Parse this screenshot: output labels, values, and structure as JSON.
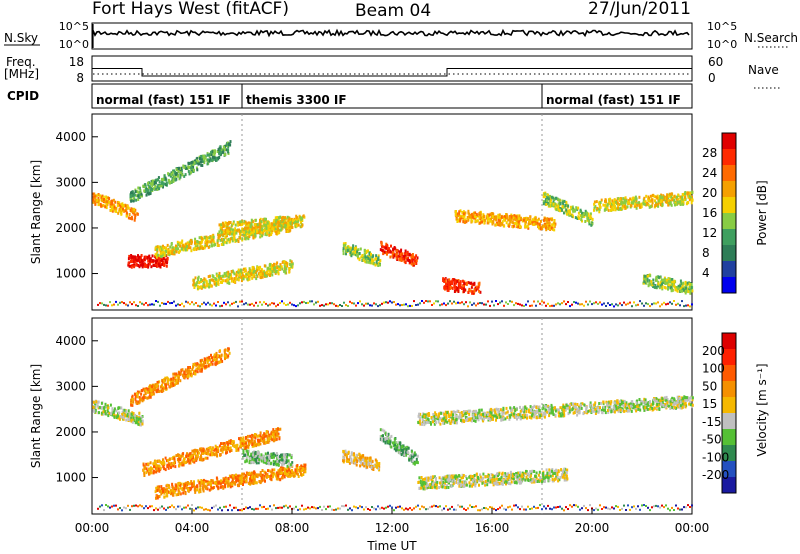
{
  "header": {
    "station": "Fort Hays West (fitACF)",
    "beam": "Beam 04",
    "date": "27/Jun/2011"
  },
  "noise_panel": {
    "left_label": "N.Sky",
    "right_label": "N.Search",
    "ticks": [
      "10^5",
      "10^0"
    ]
  },
  "freq_panel": {
    "left_label_line1": "Freq.",
    "left_label_line2": "[MHz]",
    "left_ticks": [
      "18",
      "8"
    ],
    "right_label": "Nave",
    "right_ticks": [
      "60",
      "0"
    ]
  },
  "cpid": {
    "label": "CPID",
    "segments": [
      {
        "label": "normal (fast) 151 IF",
        "start_hour": 0,
        "end_hour": 6
      },
      {
        "label": "themis 3300 IF",
        "start_hour": 6,
        "end_hour": 18
      },
      {
        "label": "normal (fast) 151 IF",
        "start_hour": 18,
        "end_hour": 24
      }
    ]
  },
  "time_axis": {
    "label": "Time UT",
    "ticks": [
      "00:00",
      "04:00",
      "08:00",
      "12:00",
      "16:00",
      "20:00",
      "00:00"
    ]
  },
  "power_panel": {
    "ylabel": "Slant Range [km]",
    "yticks": [
      "1000",
      "2000",
      "3000",
      "4000"
    ],
    "colorbar_label": "Power [dB]",
    "colorbar_ticks": [
      "28",
      "24",
      "20",
      "16",
      "12",
      "8",
      "4"
    ],
    "colors": [
      "#0000ee",
      "#2040a0",
      "#2e7d57",
      "#3f9f5f",
      "#88cc44",
      "#f5d000",
      "#f5a000",
      "#ff6a00",
      "#ff2a00",
      "#e00000"
    ]
  },
  "velocity_panel": {
    "ylabel": "Slant Range [km]",
    "yticks": [
      "1000",
      "2000",
      "3000",
      "4000"
    ],
    "colorbar_label": "Velocity [m s⁻¹]",
    "colorbar_ticks": [
      "200",
      "100",
      "50",
      "15",
      "-15",
      "-50",
      "-100",
      "-200"
    ],
    "colors": [
      "#1a1aa0",
      "#2450c0",
      "#2f8a4f",
      "#55c035",
      "#c0c0c0",
      "#f5b800",
      "#f59000",
      "#ff5a00",
      "#ff2000",
      "#dd0000"
    ]
  },
  "chart_data": {
    "type": "heatmap",
    "x_units": "hours UT",
    "xlim": [
      0,
      24
    ],
    "ylim": [
      200,
      4500
    ],
    "frequency_mhz": {
      "steps": [
        {
          "start_hour": 0,
          "end_hour": 2,
          "value": 13
        },
        {
          "start_hour": 2,
          "end_hour": 14.2,
          "value": 10
        },
        {
          "start_hour": 14.2,
          "end_hour": 24,
          "value": 13
        }
      ]
    },
    "power_bands": [
      {
        "start_hour": 0.0,
        "end_hour": 1.8,
        "start_range_km": 2700,
        "end_range_km": 2300,
        "level": 6
      },
      {
        "start_hour": 1.5,
        "end_hour": 5.5,
        "start_range_km": 2700,
        "end_range_km": 3800,
        "level": 3
      },
      {
        "start_hour": 1.4,
        "end_hour": 3.0,
        "start_range_km": 1300,
        "end_range_km": 1300,
        "level": 9
      },
      {
        "start_hour": 2.5,
        "end_hour": 8.0,
        "start_range_km": 1500,
        "end_range_km": 2100,
        "level": 5
      },
      {
        "start_hour": 4.0,
        "end_hour": 8.0,
        "start_range_km": 800,
        "end_range_km": 1200,
        "level": 5
      },
      {
        "start_hour": 5.0,
        "end_hour": 8.5,
        "start_range_km": 2000,
        "end_range_km": 2200,
        "level": 5
      },
      {
        "start_hour": 10.0,
        "end_hour": 11.5,
        "start_range_km": 1600,
        "end_range_km": 1300,
        "level": 4
      },
      {
        "start_hour": 11.5,
        "end_hour": 13.0,
        "start_range_km": 1600,
        "end_range_km": 1300,
        "level": 8
      },
      {
        "start_hour": 14.0,
        "end_hour": 15.5,
        "start_range_km": 800,
        "end_range_km": 700,
        "level": 8
      },
      {
        "start_hour": 14.5,
        "end_hour": 18.5,
        "start_range_km": 2300,
        "end_range_km": 2100,
        "level": 6
      },
      {
        "start_hour": 18.0,
        "end_hour": 20.0,
        "start_range_km": 2700,
        "end_range_km": 2200,
        "level": 4
      },
      {
        "start_hour": 20.0,
        "end_hour": 24.0,
        "start_range_km": 2500,
        "end_range_km": 2700,
        "level": 5
      },
      {
        "start_hour": 22.0,
        "end_hour": 24.0,
        "start_range_km": 900,
        "end_range_km": 700,
        "level": 4
      }
    ],
    "velocity_bands": [
      {
        "start_hour": 0.0,
        "end_hour": 2.0,
        "start_range_km": 2600,
        "end_range_km": 2300,
        "level": 4
      },
      {
        "start_hour": 1.5,
        "end_hour": 5.5,
        "start_range_km": 2700,
        "end_range_km": 3800,
        "level": 6
      },
      {
        "start_hour": 2.0,
        "end_hour": 7.5,
        "start_range_km": 1200,
        "end_range_km": 2000,
        "level": 6
      },
      {
        "start_hour": 2.5,
        "end_hour": 8.5,
        "start_range_km": 700,
        "end_range_km": 1200,
        "level": 6
      },
      {
        "start_hour": 6.0,
        "end_hour": 8.0,
        "start_range_km": 1500,
        "end_range_km": 1400,
        "level": 3
      },
      {
        "start_hour": 10.0,
        "end_hour": 11.5,
        "start_range_km": 1500,
        "end_range_km": 1300,
        "level": 5
      },
      {
        "start_hour": 11.5,
        "end_hour": 13.0,
        "start_range_km": 2000,
        "end_range_km": 1400,
        "level": 3
      },
      {
        "start_hour": 13.0,
        "end_hour": 24.0,
        "start_range_km": 2300,
        "end_range_km": 2700,
        "level": 4
      },
      {
        "start_hour": 13.0,
        "end_hour": 19.0,
        "start_range_km": 900,
        "end_range_km": 1100,
        "level": 4
      }
    ]
  }
}
